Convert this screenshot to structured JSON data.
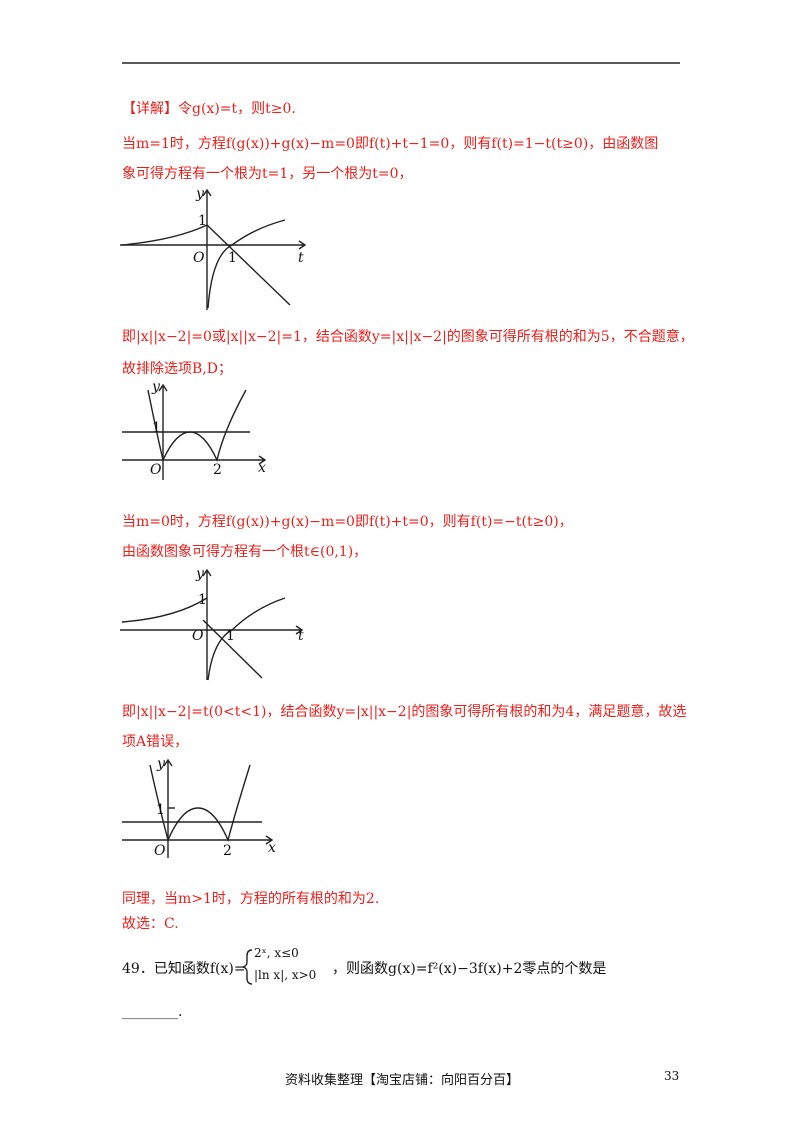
{
  "lines": [
    "【详解】令g(x)=t，则t≥0.",
    "当m=1时，方程f(g(x))+g(x)−m=0即f(t)+t−1=0，则有f(t)=1−t(t≥0)，由函数图",
    "象可得方程有一个根为t=1，另一个根为t=0，",
    "即|x||x−2|=0或|x||x−2|=1，结合函数y=|x||x−2|的图象可得所有根的和为5，不合题意，",
    "故排除选项B,D；",
    "当m=0时，方程f(g(x))+g(x)−m=0即f(t)+t=0，则有f(t)=−t(t≥0)，",
    "由函数图象可得方程有一个根t∈(0,1)，",
    "即|x||x−2|=t(0<t<1)，结合函数y=|x||x−2|的图象可得所有根的和为4，满足题意，故选",
    "项A错误，",
    "同理，当m>1时，方程的所有根的和为2.",
    "故选：C."
  ],
  "graphs": [
    {
      "labels": [
        "y",
        "1",
        "O",
        "1",
        "t"
      ]
    },
    {
      "labels": [
        "y",
        "1",
        "O",
        "2",
        "x"
      ]
    },
    {
      "labels": [
        "y",
        "1",
        "O",
        "1",
        "t"
      ]
    },
    {
      "labels": [
        "y",
        "1",
        "O",
        "2",
        "x"
      ]
    }
  ],
  "question": {
    "prefix": "49．已知函数f(x)=",
    "cases": [
      "2ˣ, x≤0",
      "|ln x|, x>0"
    ],
    "suffix": "，则函数g(x)=f²(x)−3f(x)+2零点的个数是",
    "blank": "________."
  },
  "footer": {
    "text": "资料收集整理【淘宝店铺：向阳百分百】",
    "page": "33"
  }
}
